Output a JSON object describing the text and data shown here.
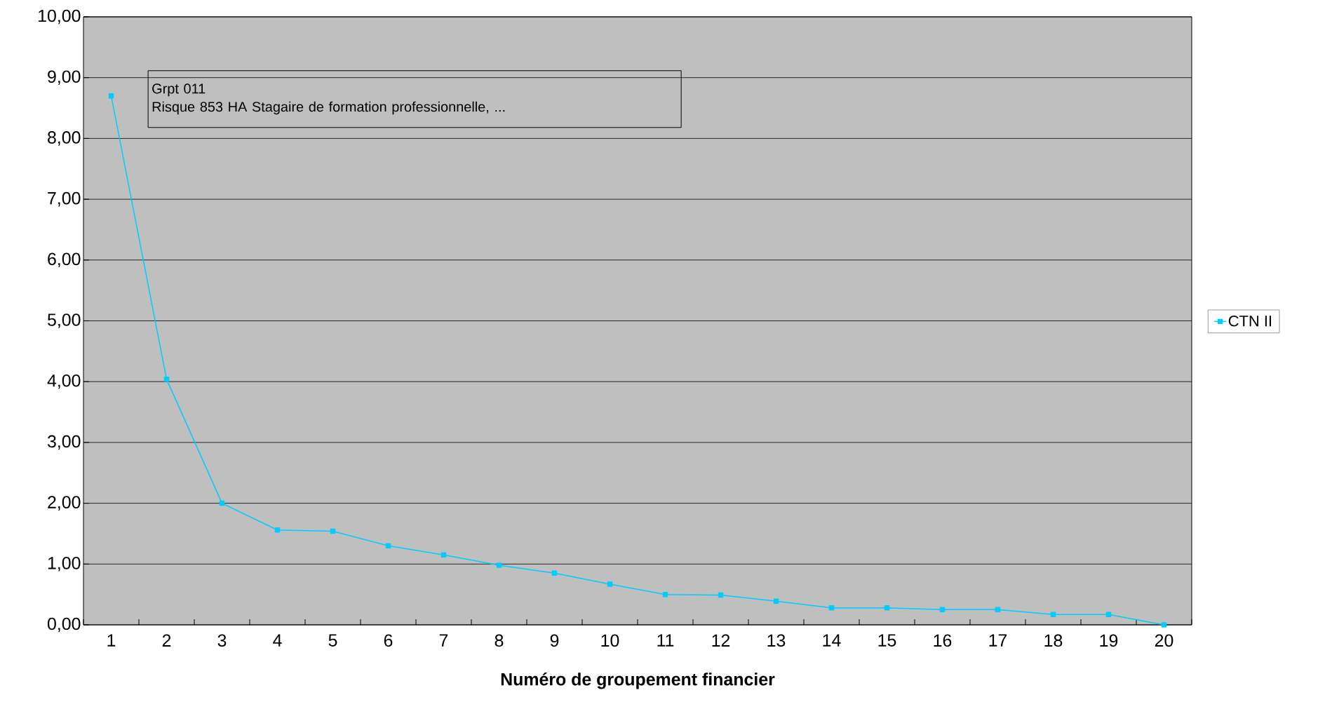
{
  "chart_data": {
    "type": "line",
    "xlabel": "Numéro de groupement financier",
    "categories": [
      "1",
      "2",
      "3",
      "4",
      "5",
      "6",
      "7",
      "8",
      "9",
      "10",
      "11",
      "12",
      "13",
      "14",
      "15",
      "16",
      "17",
      "18",
      "19",
      "20"
    ],
    "series": [
      {
        "name": "CTN II",
        "color": "#00ccff",
        "values": [
          8.7,
          4.04,
          2.0,
          1.56,
          1.54,
          1.3,
          1.15,
          0.98,
          0.85,
          0.67,
          0.5,
          0.49,
          0.39,
          0.28,
          0.28,
          0.25,
          0.25,
          0.17,
          0.17,
          0.0
        ]
      }
    ],
    "ylim": [
      0,
      10
    ],
    "yticks": [
      {
        "value": 0,
        "label": "0,00"
      },
      {
        "value": 1,
        "label": "1,00"
      },
      {
        "value": 2,
        "label": "2,00"
      },
      {
        "value": 3,
        "label": "3,00"
      },
      {
        "value": 4,
        "label": "4,00"
      },
      {
        "value": 5,
        "label": "5,00"
      },
      {
        "value": 6,
        "label": "6,00"
      },
      {
        "value": 7,
        "label": "7,00"
      },
      {
        "value": 8,
        "label": "8,00"
      },
      {
        "value": 9,
        "label": "9,00"
      },
      {
        "value": 10,
        "label": "10,00"
      }
    ],
    "annotations": [
      "Grpt 011",
      "Risque 853 HA Stagaire de formation professionnelle, ..."
    ],
    "grid": "y",
    "legend": "right",
    "marker": "square",
    "line_style": "solid"
  }
}
